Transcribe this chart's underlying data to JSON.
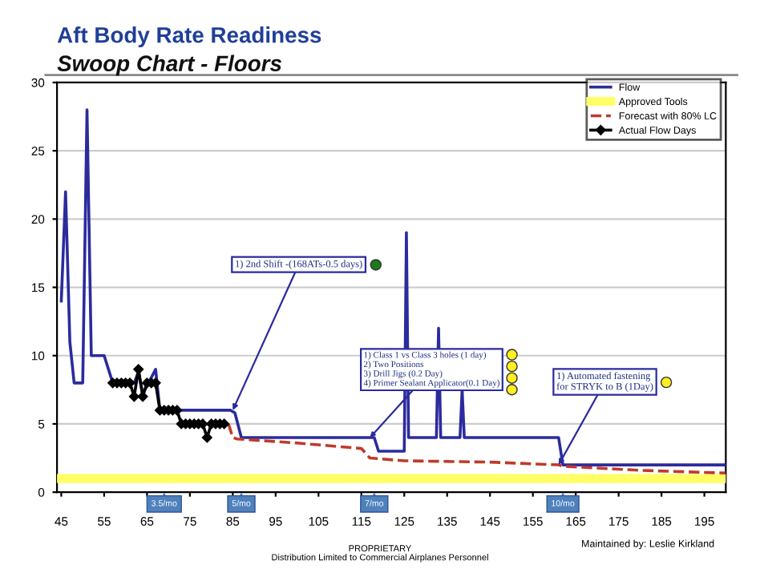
{
  "chart_data": {
    "type": "line",
    "title": "Aft Body Rate Readiness",
    "subtitle": "Swoop Chart - Floors",
    "xlim": [
      44,
      200
    ],
    "xticks": [
      45,
      55,
      65,
      75,
      85,
      95,
      105,
      115,
      125,
      135,
      145,
      155,
      165,
      175,
      185,
      195
    ],
    "ylim": [
      0,
      30
    ],
    "yticks": [
      0,
      5,
      10,
      15,
      20,
      25,
      30
    ],
    "grid": "y",
    "legend": "top right",
    "series": [
      {
        "name": "Flow",
        "color": "#2b2b9e",
        "x": [
          45,
          46,
          47,
          48,
          50,
          51,
          52,
          55,
          57,
          62,
          63,
          64,
          67,
          68,
          84.5,
          85.5,
          87,
          118,
          119,
          125,
          125.5,
          126,
          127,
          132.5,
          133,
          133.5,
          138,
          138.5,
          139,
          140,
          161,
          162,
          200
        ],
        "values": [
          14,
          22,
          11,
          8,
          8,
          28,
          10,
          10,
          8,
          8,
          8.8,
          7.2,
          9,
          6,
          6,
          5.8,
          4,
          4,
          3,
          3,
          19,
          4,
          4,
          4,
          12,
          4,
          4,
          7.5,
          4,
          4,
          4,
          2,
          2
        ]
      },
      {
        "name": "Approved Tools",
        "color": "#ffff66",
        "x": [
          44,
          200
        ],
        "values": [
          1,
          1
        ]
      },
      {
        "name": "Forecast with 80% LC",
        "color": "#c0392b",
        "line_style": "dashed",
        "x": [
          84,
          85,
          86,
          100,
          115,
          117,
          125,
          145,
          161,
          162,
          180,
          200
        ],
        "values": [
          5,
          4,
          3.9,
          3.6,
          3.2,
          2.5,
          2.3,
          2.2,
          2.0,
          1.9,
          1.6,
          1.4
        ]
      },
      {
        "name": "Actual Flow Days",
        "color": "#000000",
        "marker": "diamond",
        "x": [
          57,
          58,
          59,
          60,
          61,
          62,
          63,
          64,
          65,
          66,
          67,
          68,
          69,
          70,
          71,
          72,
          73,
          74,
          75,
          76,
          77,
          78,
          79,
          80,
          81,
          82,
          83
        ],
        "values": [
          8,
          8,
          8,
          8,
          8,
          7,
          9,
          7,
          8,
          8,
          8,
          6,
          6,
          6,
          6,
          6,
          5,
          5,
          5,
          5,
          5,
          5,
          4,
          5,
          5,
          5,
          5
        ]
      }
    ],
    "annotations": [
      {
        "text": "1) 2nd Shift -(168ATs-0.5 days)",
        "x": 85,
        "y": 6
      },
      {
        "text": "1) Class 1 vs Class 3 holes (1 day)\n2) Two Positions\n3) Drill Jigs (0.2 Day)\n4) Primer Sealant Applicator(0.1 Day)",
        "x": 117,
        "y": 4
      },
      {
        "text": "1) Automated fastening\nfor STRYK to B (1Day)",
        "x": 161,
        "y": 2
      },
      {
        "text": "3.5/mo",
        "x": 69,
        "y": 0
      },
      {
        "text": "5/mo",
        "x": 87,
        "y": 0
      },
      {
        "text": "7/mo",
        "x": 118,
        "y": 0
      },
      {
        "text": "10/mo",
        "x": 162,
        "y": 0
      },
      "PROPRIETARY\nDistribution Limited to Commercial Airplanes Personnel",
      "Maintained by: Leslie Kirkland"
    ]
  }
}
